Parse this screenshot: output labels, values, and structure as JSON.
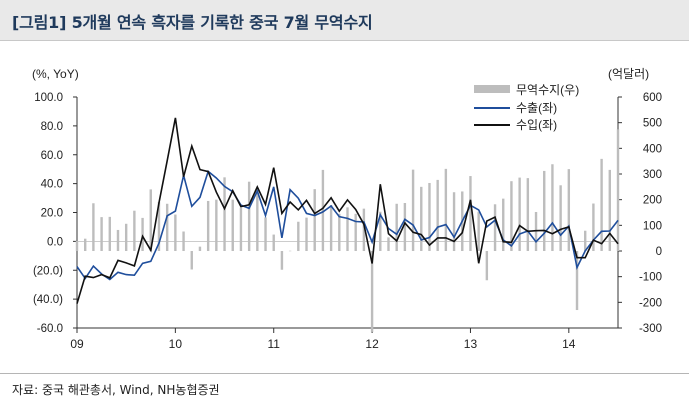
{
  "title": "[그림1]  5개월 연속 흑자를 기록한 중국 7월 무역수지",
  "source": "자료: 중국 해관총서, Wind, NH농협증권",
  "chart_data": {
    "type": "bar+line",
    "y_left": {
      "label": "(%, YoY)",
      "range": [
        -60,
        100
      ],
      "ticks": [
        "100.0",
        "80.0",
        "60.0",
        "40.0",
        "20.0",
        "0.0",
        "(20.0)",
        "(40.0)",
        "-60.0"
      ]
    },
    "y_right": {
      "label": "(억달러)",
      "range": [
        -300,
        600
      ],
      "ticks": [
        "600",
        "500",
        "400",
        "300",
        "200",
        "100",
        "0",
        "-100",
        "-200",
        "-300"
      ]
    },
    "x_ticks": [
      "09",
      "10",
      "11",
      "12",
      "13",
      "14"
    ],
    "legend": [
      "무역수지(우)",
      "수출(좌)",
      "수입(좌)"
    ],
    "legend_position": "top-right",
    "colors": {
      "trade_balance": "#bdbdbd",
      "exports": "#1f4e9c",
      "imports": "#111111"
    },
    "months": 67,
    "x_start": "2009-01",
    "trade_balance": [
      39,
      48,
      186,
      132,
      133,
      82,
      106,
      157,
      129,
      240,
      191,
      184,
      142,
      76,
      -72,
      17,
      195,
      200,
      287,
      200,
      169,
      270,
      229,
      131,
      64,
      -73,
      1,
      114,
      130,
      241,
      316,
      179,
      145,
      170,
      145,
      165,
      -315,
      153,
      53,
      184,
      187,
      317,
      250,
      265,
      277,
      320,
      229,
      232,
      292,
      153,
      -114,
      182,
      204,
      272,
      286,
      284,
      152,
      312,
      338,
      256,
      319,
      -230,
      79,
      185,
      359,
      316,
      474
    ],
    "exports": [
      -17.5,
      -25.7,
      -17.1,
      -22.6,
      -26.4,
      -21.4,
      -23,
      -23.4,
      -15.2,
      -13.8,
      -1.2,
      17.7,
      21,
      45.7,
      24.3,
      30.5,
      48.5,
      43.9,
      38.1,
      34.4,
      25.1,
      22.9,
      34.9,
      17.9,
      37.7,
      2.4,
      35.8,
      29.9,
      19.4,
      17.9,
      20.4,
      24.5,
      17.1,
      15.9,
      13.8,
      13.4,
      -0.5,
      18.4,
      8.9,
      4.9,
      15.3,
      11.3,
      1,
      2.7,
      9.9,
      11.6,
      2.9,
      14.1,
      25,
      21.8,
      10,
      14.7,
      1,
      -3.1,
      5.1,
      7.2,
      -0.3,
      5.6,
      12.7,
      4.3,
      10.6,
      -18.1,
      -6.6,
      0.9,
      7,
      7.2,
      14.5
    ],
    "imports": [
      -43.1,
      -24.1,
      -25.1,
      -23,
      -25.2,
      -13.2,
      -14.9,
      -17,
      3.5,
      -6.2,
      26.8,
      55.9,
      85.5,
      44.7,
      66,
      49.7,
      48.3,
      34.1,
      22.7,
      35.2,
      24.1,
      25.3,
      37.7,
      25.6,
      51,
      19.4,
      27.3,
      21.8,
      28.4,
      19.3,
      22.9,
      30.2,
      20.9,
      28.7,
      22.1,
      11.8,
      -15.3,
      39.6,
      5.3,
      0.3,
      12.7,
      6.3,
      4.7,
      -2.6,
      2.4,
      2.4,
      0,
      6,
      28.8,
      -15.2,
      14.1,
      16.8,
      -0.3,
      -0.7,
      10.9,
      7,
      7.4,
      7.6,
      5.3,
      8.3,
      10,
      -11.3,
      -11.3,
      0.8,
      -1.6,
      5.5,
      -1.6
    ]
  }
}
